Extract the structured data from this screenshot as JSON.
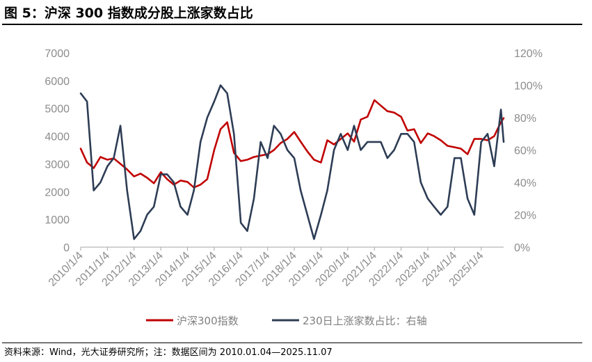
{
  "header": {
    "title": "图 5：沪深 300 指数成分股上涨家数占比"
  },
  "footer": {
    "source": "资料来源：Wind，光大证券研究所；注：数据区间为 2010.01.04—2025.11.07"
  },
  "chart_data": {
    "type": "line",
    "title": "",
    "x": [
      "2010-01-04",
      "2010-04-01",
      "2010-07-01",
      "2010-10-01",
      "2011-01-04",
      "2011-04-01",
      "2011-07-01",
      "2011-10-01",
      "2012-01-04",
      "2012-04-01",
      "2012-07-01",
      "2012-10-01",
      "2013-01-04",
      "2013-04-01",
      "2013-07-01",
      "2013-10-01",
      "2014-01-04",
      "2014-04-01",
      "2014-07-01",
      "2014-10-01",
      "2015-01-04",
      "2015-04-01",
      "2015-07-01",
      "2015-10-01",
      "2016-01-04",
      "2016-04-01",
      "2016-07-01",
      "2016-10-01",
      "2017-01-04",
      "2017-04-01",
      "2017-07-01",
      "2017-10-01",
      "2018-01-04",
      "2018-04-01",
      "2018-07-01",
      "2018-10-01",
      "2019-01-04",
      "2019-04-01",
      "2019-07-01",
      "2019-10-01",
      "2020-01-04",
      "2020-04-01",
      "2020-07-01",
      "2020-10-01",
      "2021-01-04",
      "2021-04-01",
      "2021-07-01",
      "2021-10-01",
      "2022-01-04",
      "2022-04-01",
      "2022-07-01",
      "2022-10-01",
      "2023-01-04",
      "2023-04-01",
      "2023-07-01",
      "2023-10-01",
      "2024-01-04",
      "2024-04-01",
      "2024-07-01",
      "2024-10-01",
      "2025-01-04",
      "2025-04-01",
      "2025-07-01",
      "2025-10-01",
      "2025-11-07"
    ],
    "x_tick_labels": [
      "2010/1/4",
      "2011/1/4",
      "2012/1/4",
      "2013/1/4",
      "2014/1/4",
      "2015/1/4",
      "2016/1/4",
      "2017/1/4",
      "2018/1/4",
      "2019/1/4",
      "2020/1/4",
      "2021/1/4",
      "2022/1/4",
      "2023/1/4",
      "2024/1/4",
      "2025/1/4"
    ],
    "y_left": {
      "ticks": [
        "0",
        "1000",
        "2000",
        "3000",
        "4000",
        "5000",
        "6000",
        "7000"
      ],
      "ylim": [
        0,
        7000
      ]
    },
    "y_right": {
      "ticks": [
        "0%",
        "20%",
        "40%",
        "60%",
        "80%",
        "100%",
        "120%"
      ],
      "ylim": [
        0,
        120
      ]
    },
    "grid": false,
    "legend": "bottom",
    "series": [
      {
        "name": "沪深300指数",
        "axis": "left",
        "color": "#c00000",
        "values": [
          3550,
          3050,
          2850,
          3250,
          3150,
          3200,
          3000,
          2800,
          2550,
          2650,
          2500,
          2300,
          2700,
          2450,
          2250,
          2400,
          2350,
          2150,
          2250,
          2450,
          3500,
          4250,
          4500,
          3400,
          3100,
          3150,
          3250,
          3300,
          3350,
          3500,
          3750,
          3900,
          4150,
          3800,
          3450,
          3150,
          3050,
          3850,
          3700,
          3900,
          4100,
          3800,
          4600,
          4700,
          5300,
          5100,
          4900,
          4850,
          4700,
          4200,
          4250,
          3750,
          4100,
          4000,
          3850,
          3650,
          3600,
          3550,
          3350,
          3900,
          3900,
          3850,
          4000,
          4500,
          4650
        ]
      },
      {
        "name": "230日上涨家数占比：右轴",
        "axis": "right",
        "color": "#2e3d55",
        "values": [
          95,
          90,
          35,
          40,
          50,
          55,
          75,
          35,
          5,
          10,
          20,
          25,
          45,
          45,
          40,
          25,
          20,
          35,
          65,
          80,
          90,
          100,
          95,
          70,
          15,
          10,
          30,
          65,
          55,
          75,
          70,
          60,
          55,
          35,
          20,
          5,
          20,
          35,
          60,
          70,
          60,
          75,
          60,
          65,
          65,
          65,
          55,
          60,
          70,
          70,
          65,
          40,
          30,
          25,
          20,
          25,
          55,
          55,
          30,
          20,
          65,
          70,
          50,
          85,
          65
        ]
      }
    ]
  }
}
